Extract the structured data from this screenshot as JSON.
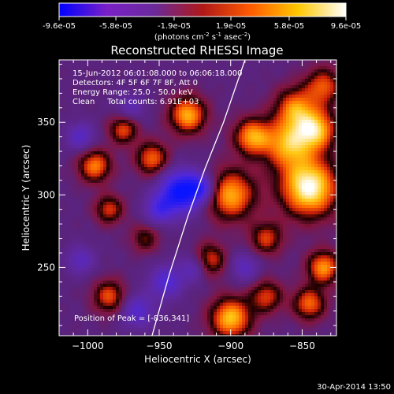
{
  "colorbar": {
    "ticks": [
      "-9.6e-05",
      "-5.8e-05",
      "-1.9e-05",
      "1.9e-05",
      "5.8e-05",
      "9.6e-05"
    ],
    "tick_values": [
      -9.6e-05,
      -5.8e-05,
      -1.9e-05,
      1.9e-05,
      5.8e-05,
      9.6e-05
    ],
    "range": [
      -9.6e-05,
      9.6e-05
    ],
    "unit_label": "(photons cm",
    "unit_exp1": "-2",
    "unit_mid": " s",
    "unit_exp2": "-1",
    "unit_end": " asec",
    "unit_exp3": "-2",
    "unit_close": ")",
    "colors": [
      "#0000ff",
      "#7a20c8",
      "#6a2a9a",
      "#b01818",
      "#ff5a00",
      "#ffc800",
      "#ffffff"
    ]
  },
  "info": {
    "line1": "15-Jun-2012 06:01:08.000 to 06:06:18.000",
    "line2": "Detectors: 4F 5F 6F 7F 8F, Att 0",
    "line3": "Energy Range: 25.0 - 50.0 keV",
    "line4": "Clean     Total counts: 6.91E+03"
  },
  "peak_label": "Position of Peak = [-836,341]",
  "footer_date": "30-Apr-2014 13:50",
  "chart_data": {
    "type": "heatmap",
    "title": "Reconstructed RHESSI Image",
    "xlabel": "Heliocentric X (arcsec)",
    "ylabel": "Heliocentric Y (arcsec)",
    "xlim": [
      -1020,
      -826
    ],
    "ylim": [
      203,
      393
    ],
    "xticks": [
      -1000,
      -950,
      -900,
      -850
    ],
    "yticks": [
      250,
      300,
      350
    ],
    "xtick_labels": [
      "−1000",
      "−950",
      "−900",
      "−850"
    ],
    "ytick_labels": [
      "250",
      "300",
      "350"
    ],
    "limb": [
      [
        -955,
        203
      ],
      [
        -943,
        245
      ],
      [
        -930,
        285
      ],
      [
        -918,
        318
      ],
      [
        -905,
        350
      ],
      [
        -890,
        393
      ]
    ],
    "sources": [
      {
        "x": -845,
        "y": 305,
        "v": 1.0,
        "r": 14
      },
      {
        "x": -860,
        "y": 335,
        "v": 0.7,
        "r": 12
      },
      {
        "x": -840,
        "y": 345,
        "v": 0.75,
        "r": 10
      },
      {
        "x": -900,
        "y": 300,
        "v": 0.75,
        "r": 12
      },
      {
        "x": -885,
        "y": 340,
        "v": 0.7,
        "r": 9
      },
      {
        "x": -855,
        "y": 360,
        "v": 0.6,
        "r": 10
      },
      {
        "x": -835,
        "y": 375,
        "v": 0.55,
        "r": 9
      },
      {
        "x": -835,
        "y": 250,
        "v": 0.7,
        "r": 8
      },
      {
        "x": -845,
        "y": 225,
        "v": 0.6,
        "r": 8
      },
      {
        "x": -930,
        "y": 355,
        "v": 0.75,
        "r": 9
      },
      {
        "x": -955,
        "y": 325,
        "v": 0.6,
        "r": 8
      },
      {
        "x": -995,
        "y": 320,
        "v": 0.65,
        "r": 8
      },
      {
        "x": -975,
        "y": 345,
        "v": 0.55,
        "r": 7
      },
      {
        "x": -985,
        "y": 290,
        "v": 0.5,
        "r": 7
      },
      {
        "x": -985,
        "y": 230,
        "v": 0.55,
        "r": 8
      },
      {
        "x": -960,
        "y": 270,
        "v": 0.35,
        "r": 7
      },
      {
        "x": -900,
        "y": 215,
        "v": 0.8,
        "r": 10
      },
      {
        "x": -875,
        "y": 230,
        "v": 0.5,
        "r": 8
      },
      {
        "x": -915,
        "y": 255,
        "v": 0.55,
        "r": 8
      },
      {
        "x": -875,
        "y": 270,
        "v": 0.5,
        "r": 8
      },
      {
        "x": -935,
        "y": 302,
        "v": -1.0,
        "r": 10
      },
      {
        "x": -920,
        "y": 305,
        "v": -0.6,
        "r": 7
      },
      {
        "x": -950,
        "y": 290,
        "v": -0.5,
        "r": 7
      },
      {
        "x": -1005,
        "y": 340,
        "v": -0.4,
        "r": 7
      },
      {
        "x": -1005,
        "y": 255,
        "v": -0.35,
        "r": 7
      },
      {
        "x": -945,
        "y": 240,
        "v": -0.5,
        "r": 8
      },
      {
        "x": -925,
        "y": 250,
        "v": -0.4,
        "r": 7
      },
      {
        "x": -965,
        "y": 220,
        "v": -0.45,
        "r": 8
      },
      {
        "x": -890,
        "y": 250,
        "v": -0.35,
        "r": 7
      },
      {
        "x": -970,
        "y": 360,
        "v": -0.3,
        "r": 7
      }
    ]
  }
}
